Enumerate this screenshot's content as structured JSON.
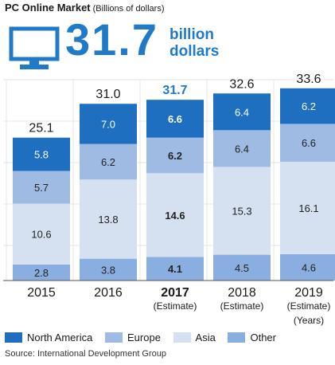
{
  "header": {
    "title": "PC Online Market",
    "unit": "(Billions of dollars)"
  },
  "highlight": {
    "icon": "monitor-icon",
    "value": "31.7",
    "unit_line1": "billion",
    "unit_line2": "dollars",
    "color": "#1f7ac8"
  },
  "chart_data": {
    "type": "bar",
    "stacked": true,
    "categories": [
      "2015",
      "2016",
      "2017",
      "2018",
      "2019"
    ],
    "category_notes": [
      "",
      "",
      "(Estimate)",
      "(Estimate)",
      "(Estimate)"
    ],
    "highlight_category": "2017",
    "axis_unit_label": "(Years)",
    "series": [
      {
        "name": "Other",
        "values": [
          2.8,
          3.8,
          4.1,
          4.5,
          4.6
        ],
        "color": "#8aaee0"
      },
      {
        "name": "Asia",
        "values": [
          10.6,
          13.8,
          14.6,
          15.3,
          16.1
        ],
        "color": "#d5e0f1"
      },
      {
        "name": "Europe",
        "values": [
          5.7,
          6.2,
          6.2,
          6.4,
          6.6
        ],
        "color": "#9fbbe3"
      },
      {
        "name": "North America",
        "values": [
          5.8,
          7.0,
          6.6,
          6.4,
          6.2
        ],
        "color": "#1f6fc0"
      }
    ],
    "totals": [
      "25.1",
      "31.0",
      "31.7",
      "32.6",
      "33.6"
    ],
    "ylim": [
      0,
      35
    ],
    "grid": true,
    "legend_position": "bottom"
  },
  "legend": [
    {
      "label": "North America",
      "color": "#1f6fc0"
    },
    {
      "label": "Europe",
      "color": "#9fbbe3"
    },
    {
      "label": "Asia",
      "color": "#d5e0f1"
    },
    {
      "label": "Other",
      "color": "#8aaee0"
    }
  ],
  "source": "Source: International Development Group"
}
